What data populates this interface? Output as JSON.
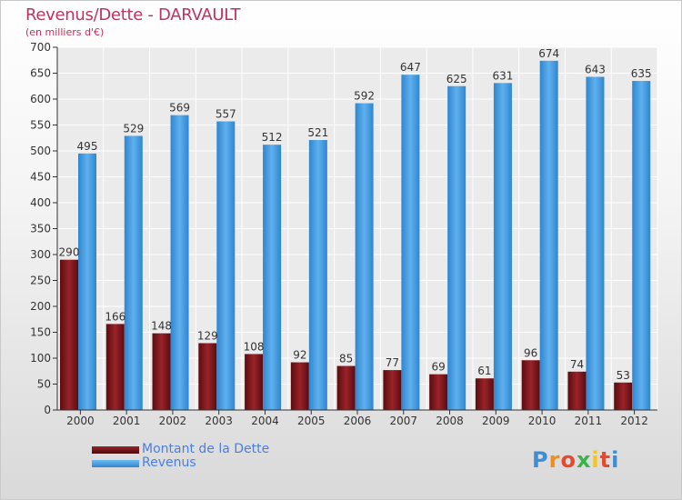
{
  "title": "Revenus/Dette - DARVAULT",
  "subtitle": "(en milliers d'€)",
  "logo": {
    "text": "Proxiti",
    "letter_colors": [
      "#3b8fd8",
      "#f28c1f",
      "#e8482c",
      "#3bb34a",
      "#f2c61f",
      "#e8482c",
      "#3b8fd8"
    ]
  },
  "colors": {
    "dette": "#7a1418",
    "revenus": "#3a93dd",
    "title": "#c0325e",
    "legend_text": "#4a7fe0"
  },
  "chart_data": {
    "type": "bar",
    "categories": [
      "2000",
      "2001",
      "2002",
      "2003",
      "2004",
      "2005",
      "2006",
      "2007",
      "2008",
      "2009",
      "2010",
      "2011",
      "2012"
    ],
    "series": [
      {
        "name": "Montant de la Dette",
        "values": [
          290,
          166,
          148,
          129,
          108,
          92,
          85,
          77,
          69,
          61,
          96,
          74,
          53
        ]
      },
      {
        "name": "Revenus",
        "values": [
          495,
          529,
          569,
          557,
          512,
          521,
          592,
          647,
          625,
          631,
          674,
          643,
          635
        ]
      }
    ],
    "title": "Revenus/Dette - DARVAULT",
    "subtitle": "(en milliers d'€)",
    "ylim": [
      0,
      700
    ],
    "yticks": [
      0,
      50,
      100,
      150,
      200,
      250,
      300,
      350,
      400,
      450,
      500,
      550,
      600,
      650,
      700
    ],
    "grid": true,
    "legend_position": "bottom-left"
  }
}
